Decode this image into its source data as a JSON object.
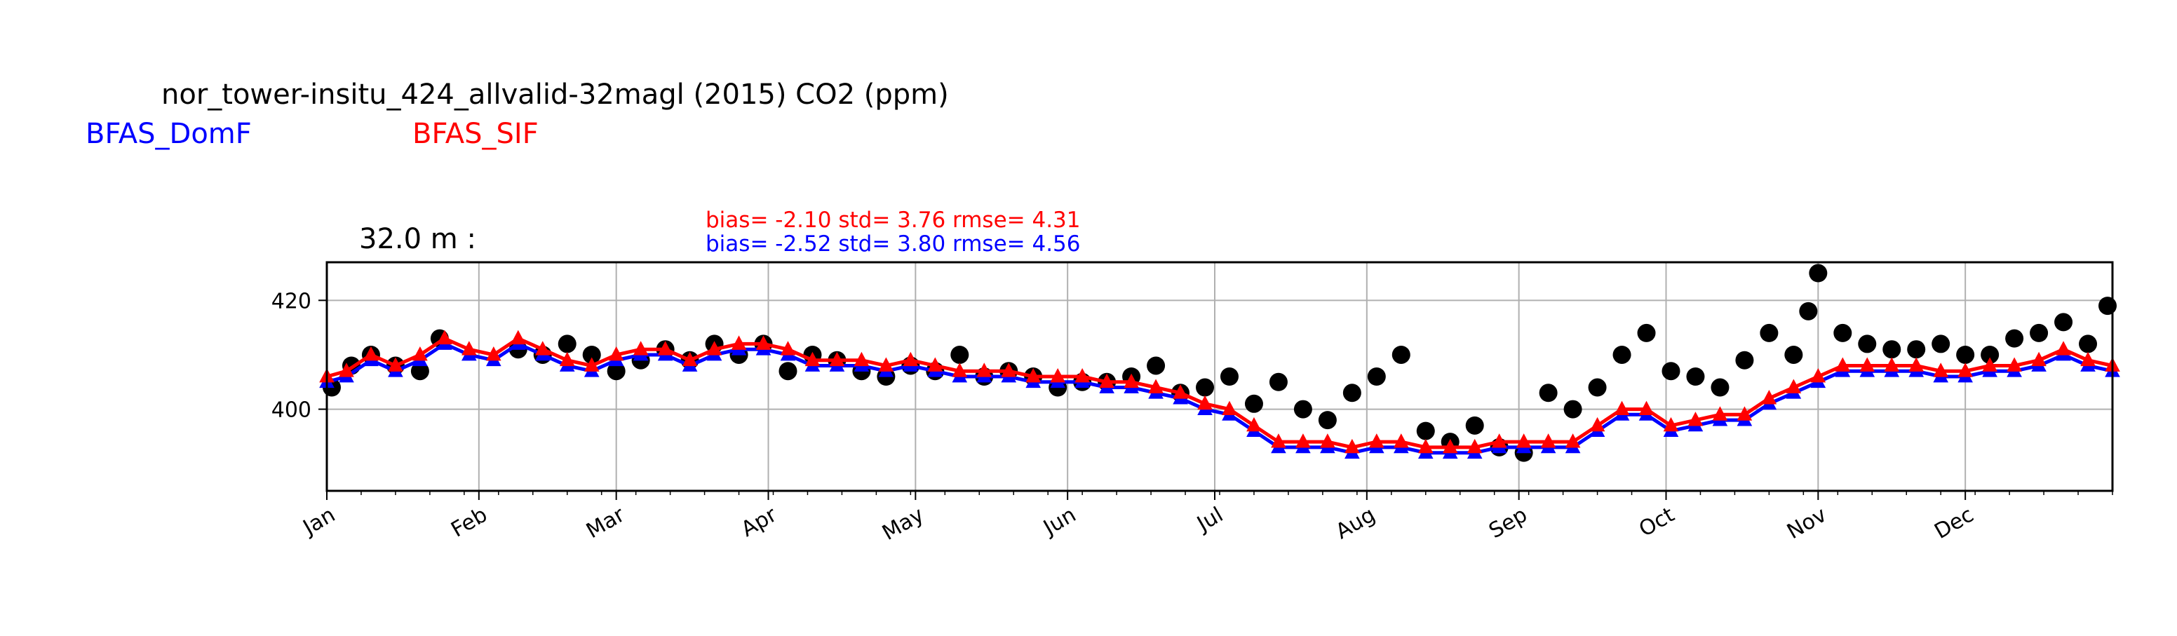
{
  "figure": {
    "title": "nor_tower-insitu_424_allvalid-32magl (2015) CO2 (ppm)",
    "legend": [
      {
        "label": "BFAS_DomF",
        "color": "#0000ff"
      },
      {
        "label": "BFAS_SIF",
        "color": "#ff0000"
      }
    ],
    "stats": [
      {
        "text": "bias= -2.10 std= 3.76 rmse= 4.31",
        "color": "#ff0000"
      },
      {
        "text": "bias= -2.52 std= 3.80 rmse= 4.56",
        "color": "#0000ff"
      }
    ],
    "panel_label": "32.0 m :"
  },
  "chart_data": {
    "type": "line",
    "x_unit": "day-of-year 2015",
    "xlim": [
      1,
      365
    ],
    "ylim": [
      385,
      427
    ],
    "yticks": [
      400,
      420
    ],
    "xtick_labels": [
      "Jan",
      "Feb",
      "Mar",
      "Apr",
      "May",
      "Jun",
      "Jul",
      "Aug",
      "Sep",
      "Oct",
      "Nov",
      "Dec"
    ],
    "xtick_days": [
      1,
      32,
      60,
      91,
      121,
      152,
      182,
      213,
      244,
      274,
      305,
      335
    ],
    "grid": true,
    "marker_colors": {
      "observed": "#000000",
      "BFAS_DomF": "#0000ff",
      "BFAS_SIF": "#ff0000"
    },
    "observed_markers": "black circles",
    "series": [
      {
        "name": "BFAS_DomF",
        "color": "#0000ff",
        "marker": "triangle",
        "x": [
          1,
          5,
          10,
          15,
          20,
          25,
          30,
          35,
          40,
          45,
          50,
          55,
          60,
          65,
          70,
          75,
          80,
          85,
          90,
          95,
          100,
          105,
          110,
          115,
          120,
          125,
          130,
          135,
          140,
          145,
          150,
          155,
          160,
          165,
          170,
          175,
          180,
          185,
          190,
          195,
          200,
          205,
          210,
          215,
          220,
          225,
          230,
          235,
          240,
          245,
          250,
          255,
          260,
          265,
          270,
          275,
          280,
          285,
          290,
          295,
          300,
          305,
          310,
          315,
          320,
          325,
          330,
          335,
          340,
          345,
          350,
          355,
          360,
          365
        ],
        "y": [
          405,
          406,
          409,
          407,
          409,
          412,
          410,
          409,
          412,
          410,
          408,
          407,
          409,
          410,
          410,
          408,
          410,
          411,
          411,
          410,
          408,
          408,
          408,
          407,
          408,
          407,
          406,
          406,
          406,
          405,
          405,
          405,
          404,
          404,
          403,
          402,
          400,
          399,
          396,
          393,
          393,
          393,
          392,
          393,
          393,
          392,
          392,
          392,
          393,
          393,
          393,
          393,
          396,
          399,
          399,
          396,
          397,
          398,
          398,
          401,
          403,
          405,
          407,
          407,
          407,
          407,
          406,
          406,
          407,
          407,
          408,
          410,
          408,
          407
        ]
      },
      {
        "name": "BFAS_SIF",
        "color": "#ff0000",
        "marker": "triangle",
        "x": [
          1,
          5,
          10,
          15,
          20,
          25,
          30,
          35,
          40,
          45,
          50,
          55,
          60,
          65,
          70,
          75,
          80,
          85,
          90,
          95,
          100,
          105,
          110,
          115,
          120,
          125,
          130,
          135,
          140,
          145,
          150,
          155,
          160,
          165,
          170,
          175,
          180,
          185,
          190,
          195,
          200,
          205,
          210,
          215,
          220,
          225,
          230,
          235,
          240,
          245,
          250,
          255,
          260,
          265,
          270,
          275,
          280,
          285,
          290,
          295,
          300,
          305,
          310,
          315,
          320,
          325,
          330,
          335,
          340,
          345,
          350,
          355,
          360,
          365
        ],
        "y": [
          406,
          407,
          410,
          408,
          410,
          413,
          411,
          410,
          413,
          411,
          409,
          408,
          410,
          411,
          411,
          409,
          411,
          412,
          412,
          411,
          409,
          409,
          409,
          408,
          409,
          408,
          407,
          407,
          407,
          406,
          406,
          406,
          405,
          405,
          404,
          403,
          401,
          400,
          397,
          394,
          394,
          394,
          393,
          394,
          394,
          393,
          393,
          393,
          394,
          394,
          394,
          394,
          397,
          400,
          400,
          397,
          398,
          399,
          399,
          402,
          404,
          406,
          408,
          408,
          408,
          408,
          407,
          407,
          408,
          408,
          409,
          411,
          409,
          408
        ]
      },
      {
        "name": "observed",
        "color": "#000000",
        "marker": "circle",
        "x": [
          2,
          6,
          10,
          15,
          20,
          24,
          40,
          45,
          50,
          55,
          60,
          65,
          70,
          75,
          80,
          85,
          90,
          95,
          100,
          105,
          110,
          115,
          120,
          125,
          130,
          135,
          140,
          145,
          150,
          155,
          160,
          165,
          170,
          175,
          180,
          185,
          190,
          195,
          200,
          205,
          210,
          215,
          220,
          225,
          230,
          235,
          240,
          245,
          250,
          255,
          260,
          265,
          270,
          275,
          280,
          285,
          290,
          295,
          300,
          303,
          305,
          310,
          315,
          320,
          325,
          330,
          335,
          340,
          345,
          350,
          355,
          360,
          364
        ],
        "y": [
          404,
          408,
          410,
          408,
          407,
          413,
          411,
          410,
          412,
          410,
          407,
          409,
          411,
          409,
          412,
          410,
          412,
          407,
          410,
          409,
          407,
          406,
          408,
          407,
          410,
          406,
          407,
          406,
          404,
          405,
          405,
          406,
          408,
          403,
          404,
          406,
          401,
          405,
          400,
          398,
          403,
          406,
          410,
          396,
          394,
          397,
          393,
          392,
          403,
          400,
          404,
          410,
          414,
          407,
          406,
          404,
          409,
          414,
          410,
          418,
          425,
          414,
          412,
          411,
          411,
          412,
          410,
          410,
          413,
          414,
          416,
          412,
          419
        ]
      }
    ]
  }
}
